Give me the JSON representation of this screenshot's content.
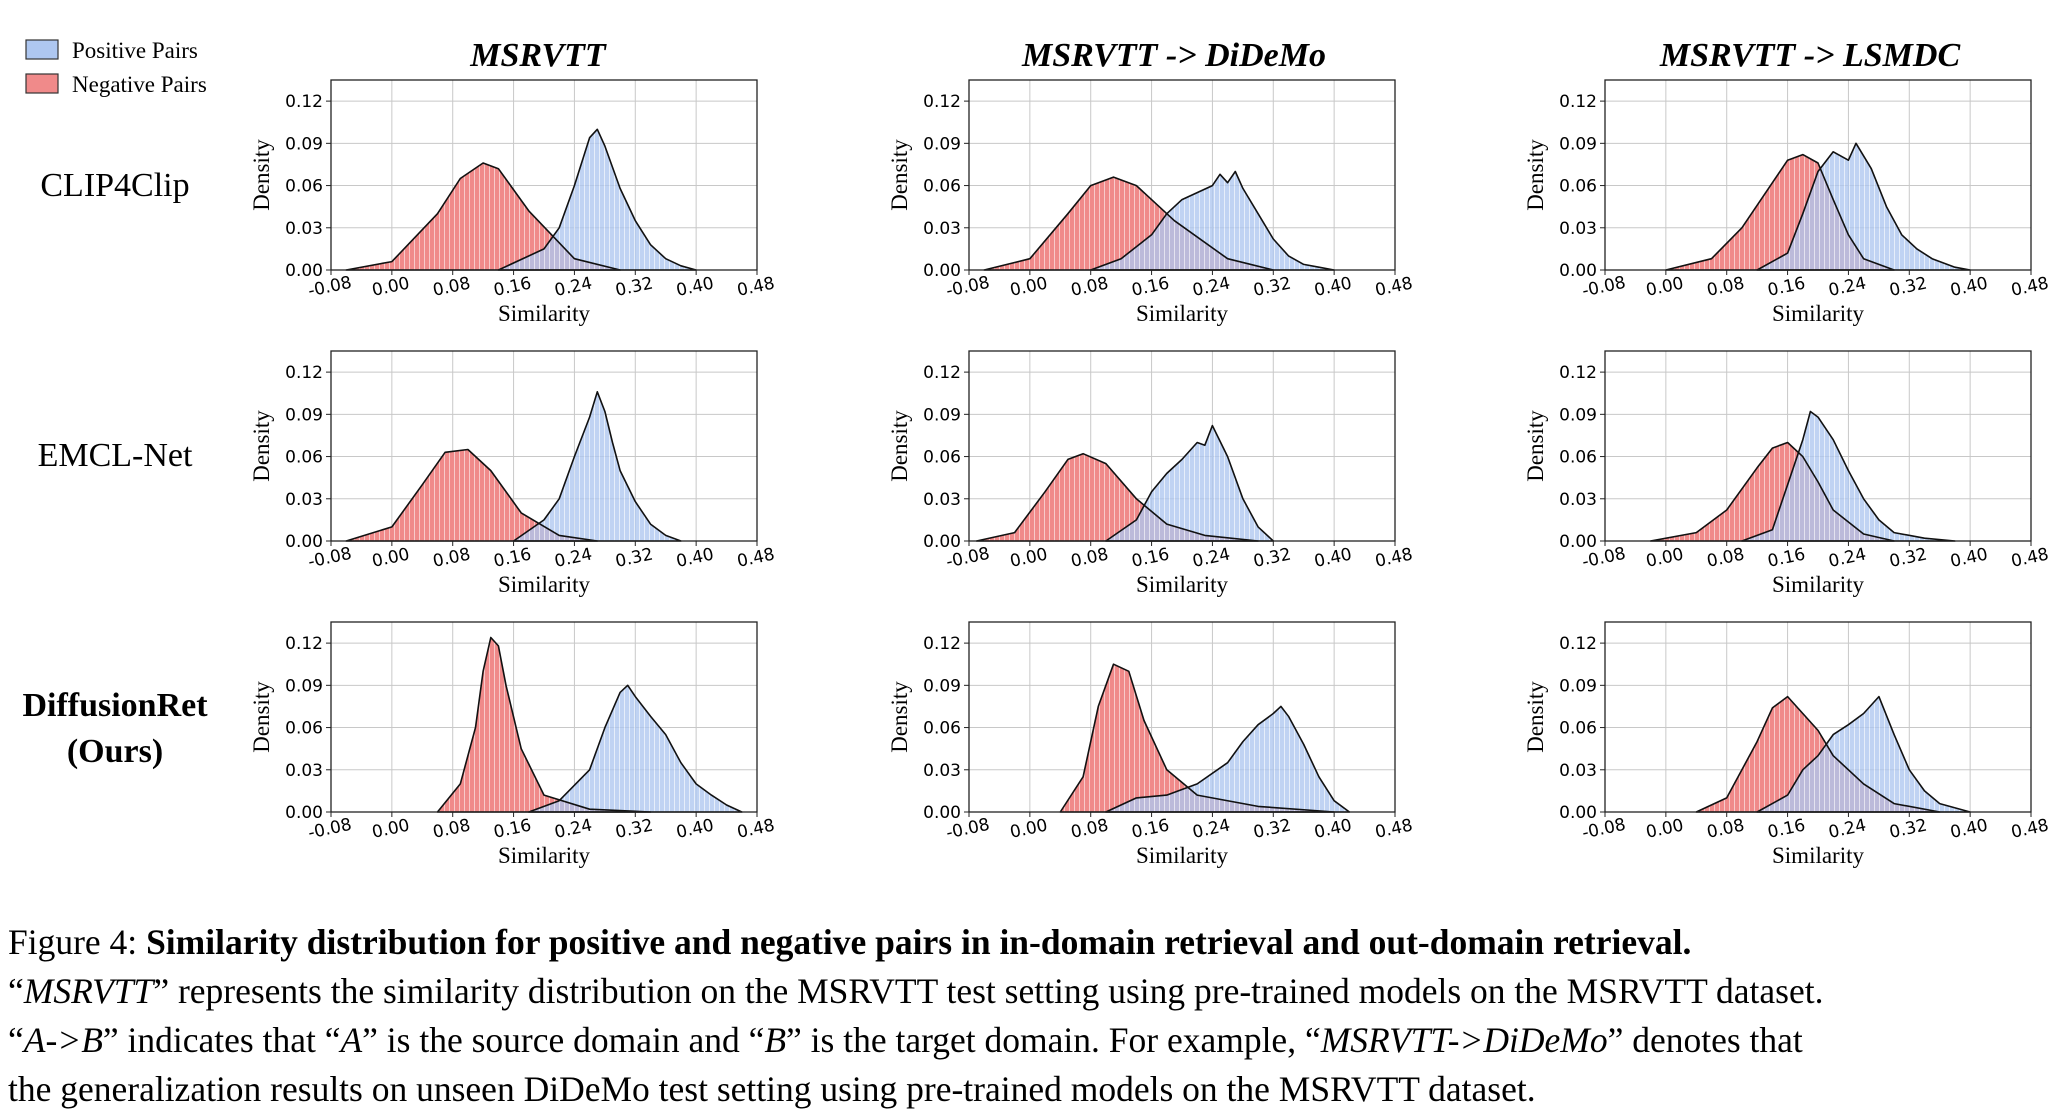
{
  "legend": {
    "positive_label": "Positive Pairs",
    "negative_label": "Negative Pairs",
    "positive_color": "#aec7f0",
    "negative_color": "#f08a8a"
  },
  "columns": [
    "MSRVTT",
    "MSRVTT -> DiDeMo",
    "MSRVTT -> LSMDC"
  ],
  "rows": [
    "CLIP4Clip",
    "EMCL-Net",
    "DiffusionRet",
    "(Ours)"
  ],
  "axes": {
    "xlabel": "Similarity",
    "ylabel": "Density",
    "xticks": [
      "-0.08",
      "0.00",
      "0.08",
      "0.16",
      "0.24",
      "0.32",
      "0.40",
      "0.48"
    ],
    "yticks": [
      "0.00",
      "0.03",
      "0.06",
      "0.09",
      "0.12"
    ]
  },
  "caption": {
    "fig_label": "Figure 4:",
    "bold": "Similarity distribution for positive and negative pairs in in-domain retrieval and out-domain retrieval.",
    "l2_q1": "“",
    "l2_i": "MSRVTT",
    "l2_rest": "” represents the similarity distribution on the MSRVTT test setting using pre-trained models on the MSRVTT dataset.",
    "l3_q1": "“",
    "l3_i1": "A->B",
    "l3_t1": "” indicates that “",
    "l3_i2": "A",
    "l3_t2": "” is the source domain and “",
    "l3_i3": "B",
    "l3_t3": "” is the target domain. For example, “",
    "l3_i4": "MSRVTT->DiDeMo",
    "l3_t4": "” denotes that",
    "l4": "the generalization results on unseen DiDeMo test setting using pre-trained models on the MSRVTT dataset."
  },
  "chart_data": {
    "type": "area",
    "xlabel": "Similarity",
    "ylabel": "Density",
    "xlim": [
      -0.08,
      0.48
    ],
    "ylim": [
      0,
      0.135
    ],
    "grid": true,
    "legend_position": "top-left",
    "panels": [
      {
        "row": "CLIP4Clip",
        "column": "MSRVTT",
        "series": [
          {
            "name": "Negative Pairs",
            "color": "#f08a8a",
            "x": [
              -0.06,
              0.0,
              0.06,
              0.09,
              0.12,
              0.14,
              0.18,
              0.24,
              0.3
            ],
            "y": [
              0.0,
              0.006,
              0.04,
              0.065,
              0.076,
              0.072,
              0.042,
              0.008,
              0.0
            ]
          },
          {
            "name": "Positive Pairs",
            "color": "#aec7f0",
            "x": [
              0.14,
              0.2,
              0.22,
              0.24,
              0.26,
              0.27,
              0.28,
              0.3,
              0.32,
              0.34,
              0.36,
              0.38,
              0.4
            ],
            "y": [
              0.0,
              0.015,
              0.03,
              0.06,
              0.094,
              0.1,
              0.088,
              0.058,
              0.035,
              0.018,
              0.008,
              0.003,
              0.0
            ]
          }
        ]
      },
      {
        "row": "CLIP4Clip",
        "column": "MSRVTT -> DiDeMo",
        "series": [
          {
            "name": "Negative Pairs",
            "color": "#f08a8a",
            "x": [
              -0.06,
              0.0,
              0.05,
              0.08,
              0.11,
              0.14,
              0.19,
              0.26,
              0.32
            ],
            "y": [
              0.0,
              0.008,
              0.04,
              0.06,
              0.066,
              0.06,
              0.035,
              0.008,
              0.0
            ]
          },
          {
            "name": "Positive Pairs",
            "color": "#aec7f0",
            "x": [
              0.08,
              0.12,
              0.16,
              0.18,
              0.2,
              0.22,
              0.24,
              0.25,
              0.26,
              0.27,
              0.28,
              0.3,
              0.32,
              0.34,
              0.36,
              0.38,
              0.4
            ],
            "y": [
              0.0,
              0.008,
              0.025,
              0.04,
              0.05,
              0.055,
              0.06,
              0.068,
              0.062,
              0.07,
              0.058,
              0.04,
              0.022,
              0.01,
              0.004,
              0.002,
              0.0
            ]
          }
        ]
      },
      {
        "row": "CLIP4Clip",
        "column": "MSRVTT -> LSMDC",
        "series": [
          {
            "name": "Negative Pairs",
            "color": "#f08a8a",
            "x": [
              0.0,
              0.06,
              0.1,
              0.14,
              0.16,
              0.18,
              0.2,
              0.22,
              0.24,
              0.26,
              0.3
            ],
            "y": [
              0.0,
              0.008,
              0.03,
              0.062,
              0.078,
              0.082,
              0.076,
              0.05,
              0.025,
              0.008,
              0.0
            ]
          },
          {
            "name": "Positive Pairs",
            "color": "#aec7f0",
            "x": [
              0.12,
              0.16,
              0.18,
              0.2,
              0.22,
              0.24,
              0.25,
              0.27,
              0.29,
              0.31,
              0.33,
              0.35,
              0.38,
              0.4
            ],
            "y": [
              0.0,
              0.012,
              0.04,
              0.07,
              0.084,
              0.078,
              0.09,
              0.072,
              0.045,
              0.025,
              0.015,
              0.008,
              0.002,
              0.0
            ]
          }
        ]
      },
      {
        "row": "EMCL-Net",
        "column": "MSRVTT",
        "series": [
          {
            "name": "Negative Pairs",
            "color": "#f08a8a",
            "x": [
              -0.06,
              0.0,
              0.04,
              0.07,
              0.1,
              0.13,
              0.17,
              0.22,
              0.27
            ],
            "y": [
              0.0,
              0.01,
              0.04,
              0.063,
              0.065,
              0.05,
              0.02,
              0.004,
              0.0
            ]
          },
          {
            "name": "Positive Pairs",
            "color": "#aec7f0",
            "x": [
              0.16,
              0.2,
              0.22,
              0.24,
              0.26,
              0.27,
              0.28,
              0.29,
              0.3,
              0.32,
              0.34,
              0.36,
              0.38
            ],
            "y": [
              0.0,
              0.015,
              0.03,
              0.06,
              0.088,
              0.106,
              0.092,
              0.07,
              0.05,
              0.028,
              0.012,
              0.004,
              0.0
            ]
          }
        ]
      },
      {
        "row": "EMCL-Net",
        "column": "MSRVTT -> DiDeMo",
        "series": [
          {
            "name": "Negative Pairs",
            "color": "#f08a8a",
            "x": [
              -0.07,
              -0.02,
              0.02,
              0.05,
              0.07,
              0.1,
              0.14,
              0.18,
              0.23,
              0.3
            ],
            "y": [
              0.0,
              0.006,
              0.035,
              0.058,
              0.062,
              0.055,
              0.03,
              0.012,
              0.004,
              0.0
            ]
          },
          {
            "name": "Positive Pairs",
            "color": "#aec7f0",
            "x": [
              0.1,
              0.14,
              0.16,
              0.18,
              0.2,
              0.22,
              0.23,
              0.24,
              0.26,
              0.28,
              0.3,
              0.32
            ],
            "y": [
              0.0,
              0.015,
              0.035,
              0.048,
              0.058,
              0.07,
              0.068,
              0.082,
              0.06,
              0.03,
              0.01,
              0.0
            ]
          }
        ]
      },
      {
        "row": "EMCL-Net",
        "column": "MSRVTT -> LSMDC",
        "series": [
          {
            "name": "Negative Pairs",
            "color": "#f08a8a",
            "x": [
              -0.02,
              0.04,
              0.08,
              0.12,
              0.14,
              0.16,
              0.18,
              0.2,
              0.22,
              0.26,
              0.3
            ],
            "y": [
              0.0,
              0.006,
              0.022,
              0.052,
              0.066,
              0.07,
              0.06,
              0.042,
              0.022,
              0.005,
              0.0
            ]
          },
          {
            "name": "Positive Pairs",
            "color": "#aec7f0",
            "x": [
              0.1,
              0.14,
              0.16,
              0.18,
              0.19,
              0.2,
              0.22,
              0.24,
              0.26,
              0.28,
              0.3,
              0.34,
              0.38
            ],
            "y": [
              0.0,
              0.008,
              0.04,
              0.072,
              0.092,
              0.088,
              0.072,
              0.05,
              0.03,
              0.015,
              0.006,
              0.002,
              0.0
            ]
          }
        ]
      },
      {
        "row": "DiffusionRet",
        "column": "MSRVTT",
        "series": [
          {
            "name": "Negative Pairs",
            "color": "#f08a8a",
            "x": [
              0.06,
              0.09,
              0.11,
              0.12,
              0.13,
              0.14,
              0.15,
              0.17,
              0.2,
              0.26,
              0.34
            ],
            "y": [
              0.0,
              0.02,
              0.06,
              0.1,
              0.124,
              0.118,
              0.09,
              0.045,
              0.012,
              0.002,
              0.0
            ]
          },
          {
            "name": "Positive Pairs",
            "color": "#aec7f0",
            "x": [
              0.18,
              0.22,
              0.26,
              0.28,
              0.3,
              0.31,
              0.32,
              0.34,
              0.36,
              0.38,
              0.4,
              0.42,
              0.44,
              0.46
            ],
            "y": [
              0.0,
              0.008,
              0.03,
              0.06,
              0.085,
              0.09,
              0.082,
              0.068,
              0.055,
              0.035,
              0.02,
              0.012,
              0.005,
              0.0
            ]
          }
        ]
      },
      {
        "row": "DiffusionRet",
        "column": "MSRVTT -> DiDeMo",
        "series": [
          {
            "name": "Negative Pairs",
            "color": "#f08a8a",
            "x": [
              0.04,
              0.07,
              0.09,
              0.11,
              0.13,
              0.15,
              0.18,
              0.22,
              0.3,
              0.4
            ],
            "y": [
              0.0,
              0.025,
              0.075,
              0.105,
              0.1,
              0.065,
              0.03,
              0.012,
              0.004,
              0.0
            ]
          },
          {
            "name": "Positive Pairs",
            "color": "#aec7f0",
            "x": [
              0.1,
              0.14,
              0.18,
              0.22,
              0.26,
              0.28,
              0.3,
              0.32,
              0.33,
              0.34,
              0.36,
              0.38,
              0.4,
              0.42
            ],
            "y": [
              0.0,
              0.01,
              0.012,
              0.02,
              0.035,
              0.05,
              0.062,
              0.07,
              0.075,
              0.068,
              0.048,
              0.025,
              0.008,
              0.0
            ]
          }
        ]
      },
      {
        "row": "DiffusionRet",
        "column": "MSRVTT -> LSMDC",
        "series": [
          {
            "name": "Negative Pairs",
            "color": "#f08a8a",
            "x": [
              0.04,
              0.08,
              0.12,
              0.14,
              0.16,
              0.18,
              0.2,
              0.22,
              0.26,
              0.3,
              0.36
            ],
            "y": [
              0.0,
              0.01,
              0.05,
              0.074,
              0.082,
              0.07,
              0.058,
              0.04,
              0.02,
              0.006,
              0.0
            ]
          },
          {
            "name": "Positive Pairs",
            "color": "#aec7f0",
            "x": [
              0.12,
              0.16,
              0.18,
              0.2,
              0.22,
              0.24,
              0.26,
              0.28,
              0.3,
              0.32,
              0.34,
              0.36,
              0.4
            ],
            "y": [
              0.0,
              0.012,
              0.03,
              0.04,
              0.055,
              0.062,
              0.07,
              0.082,
              0.055,
              0.03,
              0.015,
              0.006,
              0.0
            ]
          }
        ]
      }
    ]
  }
}
